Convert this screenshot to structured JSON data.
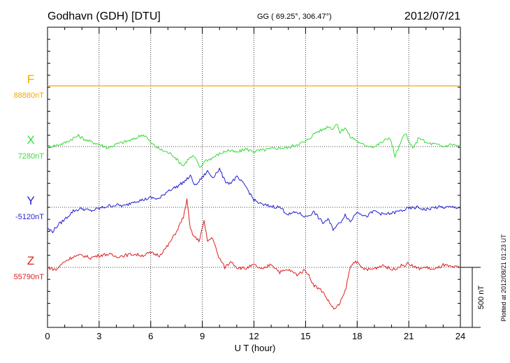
{
  "header": {
    "station": "Godhavn (GDH)  [DTU]",
    "coords": "GG ( 69.25°, 306.47°)",
    "date": "2012/07/21"
  },
  "plotted_note": "Plotted at 2012/08/21 01:23 UT",
  "scale_label": "500 nT",
  "colors": {
    "F": "#f0a800",
    "X": "#33dd33",
    "Y": "#1f1fd0",
    "Z": "#dd1f1f",
    "axis": "#000000"
  },
  "chart_data": {
    "type": "line",
    "xlabel": "U T (hour)",
    "xlim": [
      0,
      24
    ],
    "xticks": [
      0,
      3,
      6,
      9,
      12,
      15,
      18,
      21,
      24
    ],
    "xtick_labels": [
      "0",
      "3",
      "6",
      "9",
      "12",
      "15",
      "18",
      "21",
      "24"
    ],
    "scale_bar_nT": 500,
    "grid": "dotted-vertical-every-3h",
    "series": [
      {
        "name": "F",
        "baseline_label": "88880nT",
        "hours": [
          0,
          24
        ],
        "deviation_nT": [
          0,
          0
        ]
      },
      {
        "name": "X",
        "baseline_label": "7280nT",
        "hours": [
          0,
          0.5,
          1,
          1.5,
          1.8,
          2.3,
          3,
          3.5,
          4,
          4.5,
          5,
          5.5,
          5.7,
          6,
          6.5,
          7,
          7.3,
          7.6,
          7.9,
          8.2,
          8.5,
          8.9,
          9.1,
          9.5,
          10,
          10.5,
          11,
          11.5,
          12,
          12.5,
          13,
          13.5,
          14,
          14.5,
          15,
          15.3,
          15.6,
          16,
          16.3,
          16.6,
          16.8,
          17,
          17.3,
          17.6,
          17.9,
          18.2,
          18.6,
          19,
          19.5,
          19.9,
          20.2,
          20.5,
          20.8,
          21,
          21.3,
          21.6,
          22,
          22.5,
          23,
          23.5,
          24
        ],
        "deviation_nT": [
          0,
          10,
          30,
          70,
          90,
          50,
          20,
          -10,
          20,
          40,
          60,
          100,
          90,
          30,
          -20,
          -50,
          -70,
          -120,
          -160,
          -100,
          -80,
          -180,
          -120,
          -100,
          -60,
          -30,
          -50,
          -20,
          -40,
          -30,
          -20,
          -10,
          -10,
          20,
          40,
          80,
          120,
          140,
          170,
          150,
          190,
          120,
          160,
          80,
          60,
          20,
          10,
          0,
          40,
          80,
          -80,
          20,
          120,
          30,
          -10,
          80,
          30,
          20,
          0,
          20,
          0
        ]
      },
      {
        "name": "Y",
        "baseline_label": "-5120nT",
        "hours": [
          0,
          0.3,
          0.6,
          1,
          1.5,
          2,
          2.5,
          3,
          3.5,
          4,
          4.5,
          5,
          5.5,
          6,
          6.5,
          7,
          7.5,
          8,
          8.3,
          8.6,
          9,
          9.3,
          9.6,
          10,
          10.3,
          10.6,
          11,
          11.5,
          12,
          12.5,
          13,
          13.5,
          14,
          14.5,
          15,
          15.5,
          16,
          16.3,
          16.6,
          17,
          17.3,
          17.6,
          18,
          18.5,
          19,
          19.5,
          20,
          20.5,
          21,
          21.5,
          22,
          22.5,
          23,
          23.5,
          24
        ],
        "deviation_nT": [
          -180,
          -200,
          -150,
          -100,
          -30,
          -10,
          -30,
          -10,
          10,
          20,
          10,
          50,
          60,
          80,
          70,
          140,
          170,
          220,
          260,
          180,
          250,
          300,
          250,
          320,
          220,
          200,
          250,
          180,
          60,
          20,
          10,
          0,
          -60,
          -40,
          -80,
          -40,
          -130,
          -100,
          -180,
          -130,
          -60,
          -120,
          -30,
          -80,
          -30,
          -60,
          -50,
          -30,
          -10,
          0,
          -20,
          0,
          0,
          0,
          0
        ]
      },
      {
        "name": "Z",
        "baseline_label": "55790nT",
        "hours": [
          0,
          0.5,
          1,
          1.5,
          2,
          2.5,
          3,
          3.5,
          4,
          4.5,
          5,
          5.5,
          6,
          6.5,
          7,
          7.5,
          7.9,
          8.1,
          8.3,
          8.5,
          8.8,
          9.1,
          9.3,
          9.6,
          9.9,
          10.3,
          10.7,
          11,
          11.5,
          12,
          12.5,
          13,
          13.5,
          14,
          14.5,
          15,
          15.5,
          16,
          16.4,
          16.7,
          17,
          17.3,
          17.6,
          17.9,
          18.2,
          18.6,
          19,
          19.5,
          20,
          20.5,
          21,
          21.5,
          22,
          22.5,
          23,
          23.5,
          24
        ],
        "deviation_nT": [
          0,
          -20,
          50,
          90,
          100,
          80,
          100,
          110,
          90,
          100,
          110,
          100,
          120,
          100,
          180,
          300,
          420,
          560,
          320,
          260,
          220,
          380,
          220,
          250,
          100,
          0,
          50,
          0,
          -10,
          20,
          -20,
          30,
          -40,
          -20,
          -60,
          -20,
          -150,
          -200,
          -300,
          -350,
          -300,
          -200,
          0,
          60,
          0,
          -20,
          -10,
          20,
          -20,
          10,
          30,
          -10,
          0,
          -20,
          20,
          0,
          0
        ]
      }
    ]
  }
}
